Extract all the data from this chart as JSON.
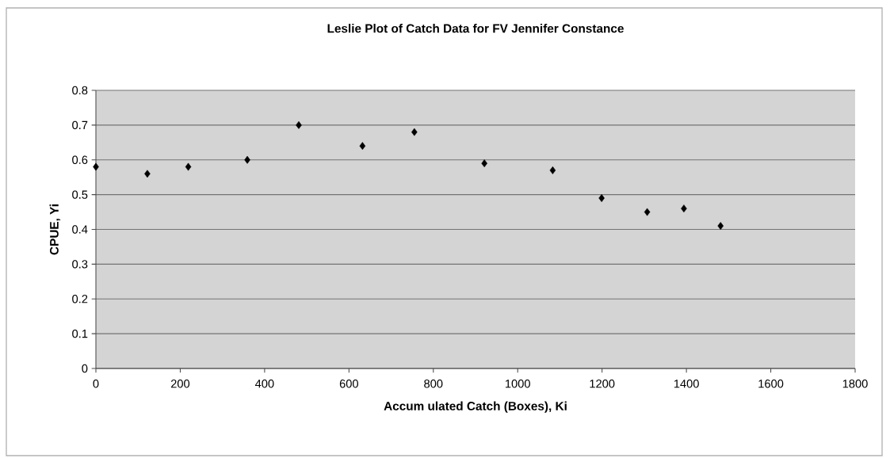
{
  "chart_data": {
    "type": "scatter",
    "title": "Leslie Plot of Catch Data for FV Jennifer Constance",
    "xlabel": "Accum ulated Catch (Boxes), Ki",
    "ylabel": "CPUE, Yi",
    "x": [
      0,
      122,
      219,
      359,
      481,
      632,
      755,
      921,
      1083,
      1199,
      1307,
      1394,
      1481
    ],
    "values": [
      0.58,
      0.56,
      0.58,
      0.6,
      0.7,
      0.64,
      0.68,
      0.59,
      0.57,
      0.49,
      0.45,
      0.46,
      0.41
    ],
    "color": "#000000",
    "marker": "diamond",
    "xlim": [
      0,
      1800
    ],
    "ylim": [
      0,
      0.8
    ],
    "xticks": [
      0,
      200,
      400,
      600,
      800,
      1000,
      1200,
      1400,
      1600,
      1800
    ],
    "yticks": [
      0,
      0.1,
      0.2,
      0.3,
      0.4,
      0.5,
      0.6,
      0.7,
      0.8
    ],
    "grid": "y"
  }
}
